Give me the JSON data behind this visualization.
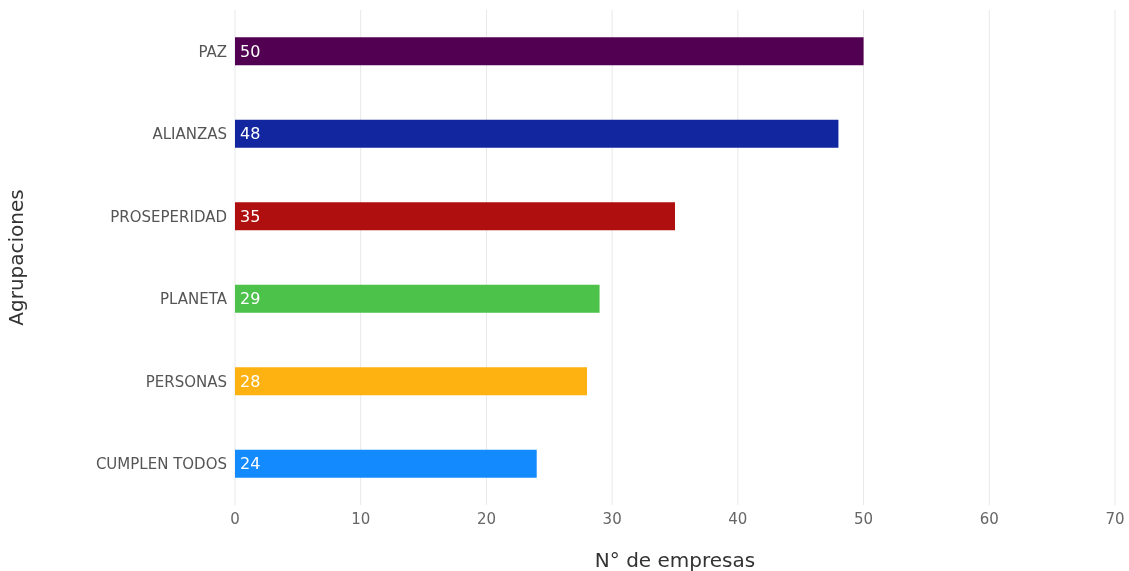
{
  "chart_data": {
    "type": "bar",
    "orientation": "horizontal",
    "xlabel": "N° de empresas",
    "ylabel": "Agrupaciones",
    "categories": [
      "PAZ",
      "ALIANZAS",
      "PROSEPERIDAD",
      "PLANETA",
      "PERSONAS",
      "CUMPLEN TODOS"
    ],
    "values": [
      50,
      48,
      35,
      29,
      28,
      24
    ],
    "colors": [
      "#520052",
      "#1226a0",
      "#b00f0f",
      "#4cc24a",
      "#fdb212",
      "#138bff"
    ],
    "xlim": [
      0,
      70
    ],
    "xticks": [
      0,
      10,
      20,
      30,
      40,
      50,
      60,
      70
    ],
    "grid": "x",
    "data_labels": true
  }
}
